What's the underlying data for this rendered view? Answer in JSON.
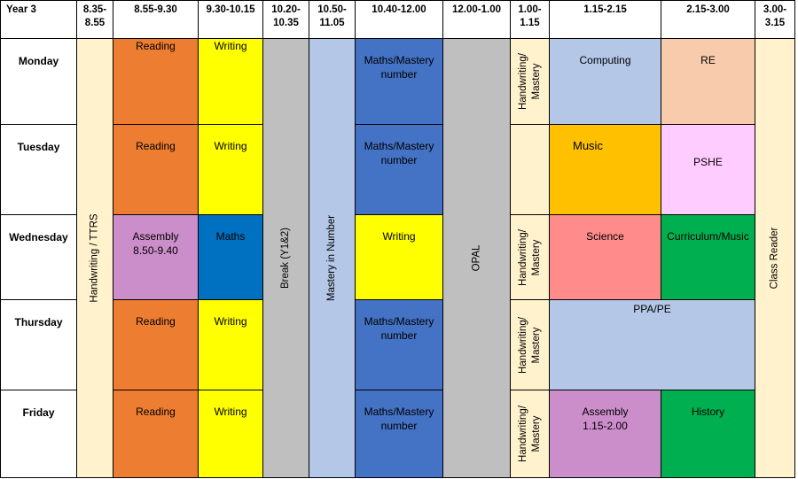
{
  "header": {
    "year": "Year 3",
    "t1": "8.35-8.55",
    "t2": "8.55-9.30",
    "t3": "9.30-10.15",
    "t4": "10.20-10.35",
    "t5": "10.50-11.05",
    "t6": "10.40-12.00",
    "t7": "12.00-1.00",
    "t8": "1.00-1.15",
    "t9": "1.15-2.15",
    "t10": "2.15-3.00",
    "t11": "3.00-3.15"
  },
  "days": [
    "Monday",
    "Tuesday",
    "Wednesday",
    "Thursday",
    "Friday"
  ],
  "spans": {
    "handwriting_ttrs": "Handwriting / TTRS",
    "break": "Break (Y1&2)",
    "mastery": "Mastery in Number",
    "opal": "OPAL",
    "class_reader": "Class Reader"
  },
  "monday": {
    "a": "Reading",
    "b": "Writing",
    "c": "Maths/Mastery number",
    "d": "Handwriting/ Mastery",
    "e": "Computing",
    "f": "RE"
  },
  "tuesday": {
    "a": "Reading",
    "b": "Writing",
    "c": "Maths/Mastery number",
    "d": "",
    "e": "Music",
    "f": "PSHE"
  },
  "wednesday": {
    "a": "Assembly 8.50-9.40",
    "b": "Maths",
    "c": "Writing",
    "d": "Handwriting/ Mastery",
    "e": "Science",
    "f": "Curriculum/Music"
  },
  "thursday": {
    "a": "Reading",
    "b": "Writing",
    "c": "Maths/Mastery number",
    "d": "Handwriting/ Mastery",
    "e": "PPA/PE"
  },
  "friday": {
    "a": "Reading",
    "b": "Writing",
    "c": "Maths/Mastery number",
    "d": "Handwriting/ Mastery",
    "e": "Assembly 1.15-2.00",
    "f": "History"
  }
}
